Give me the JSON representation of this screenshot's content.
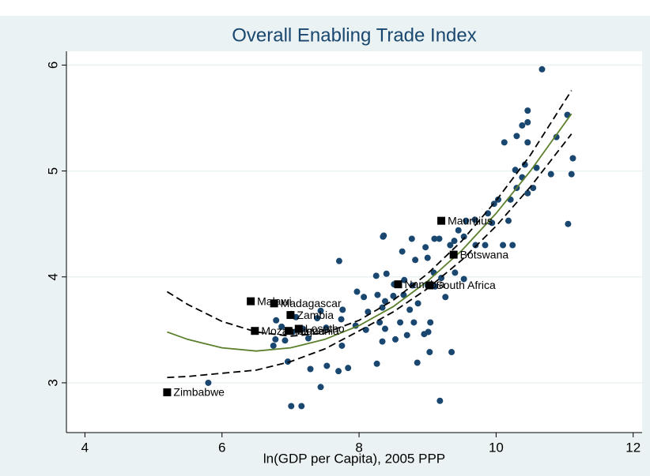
{
  "chart_data": {
    "type": "scatter",
    "title": "Overall Enabling Trade Index",
    "x_label": "ln(GDP per Capita), 2005 PPP",
    "xlim": [
      3.73,
      12.13
    ],
    "xticks": [
      4,
      6,
      8,
      10,
      12
    ],
    "ylim": [
      2.53,
      6.13
    ],
    "yticks": [
      3,
      4,
      5,
      6
    ],
    "grid": true,
    "points": {
      "color": "#1a476f",
      "x": [
        10.67,
        10.46,
        11.04,
        10.46,
        10.3,
        10.38,
        10.46,
        10.12,
        10.88,
        11.12,
        10.42,
        10.28,
        10.59,
        10.8,
        11.1,
        10.38,
        10.3,
        10.54,
        10.46,
        10.21,
        10.03,
        9.97,
        9.88,
        9.69,
        9.94,
        10.18,
        11.05,
        9.56,
        9.45,
        9.39,
        9.53,
        9.17,
        9.33,
        9.7,
        9.84,
        10.1,
        10.24,
        9.1,
        8.97,
        8.77,
        8.36,
        8.63,
        8.82,
        9.0,
        9.09,
        9.0,
        9.2,
        9.4,
        9.53,
        9.26,
        9.11,
        8.78,
        8.66,
        8.51,
        8.4,
        8.25,
        7.97,
        8.27,
        8.5,
        8.65,
        8.86,
        8.74,
        8.38,
        8.13,
        8.07,
        8.34,
        7.76,
        8.3,
        8.6,
        8.38,
        8.8,
        9.04,
        9.01,
        8.34,
        8.7,
        8.95,
        8.85,
        9.03,
        7.95,
        7.74,
        7.39,
        7.44,
        7.52,
        7.18,
        6.87,
        7.03,
        7.08,
        6.79,
        6.75,
        6.92,
        6.96,
        7.26,
        7.01,
        7.29,
        7.53,
        7.75,
        7.84,
        8.1,
        8.26,
        8.53,
        7.01,
        7.16,
        7.44,
        5.8,
        7.71,
        8.35,
        9.18,
        9.35,
        6.78,
        7.7
      ],
      "y": [
        5.96,
        5.57,
        5.53,
        5.46,
        5.33,
        5.43,
        5.27,
        5.27,
        5.32,
        5.12,
        5.06,
        5.01,
        5.03,
        4.97,
        4.97,
        4.94,
        4.84,
        4.84,
        4.79,
        4.73,
        4.73,
        4.69,
        4.6,
        4.54,
        4.51,
        4.53,
        4.5,
        4.53,
        4.44,
        4.34,
        4.38,
        4.36,
        4.3,
        4.3,
        4.3,
        4.3,
        4.3,
        4.36,
        4.28,
        4.36,
        4.39,
        4.24,
        4.16,
        4.18,
        4.04,
        3.92,
        3.99,
        4.04,
        3.98,
        3.81,
        3.91,
        3.92,
        3.97,
        3.93,
        4.03,
        4.01,
        3.86,
        3.83,
        3.82,
        3.83,
        3.75,
        3.69,
        3.77,
        3.67,
        3.81,
        3.71,
        3.69,
        3.57,
        3.57,
        3.51,
        3.57,
        3.57,
        3.48,
        3.39,
        3.45,
        3.46,
        3.19,
        3.29,
        3.54,
        3.6,
        3.61,
        3.68,
        3.52,
        3.51,
        3.53,
        3.48,
        3.62,
        3.59,
        3.35,
        3.4,
        3.2,
        3.42,
        3.65,
        3.13,
        3.16,
        3.35,
        3.14,
        3.5,
        3.18,
        3.41,
        2.78,
        2.78,
        2.96,
        3.0,
        4.15,
        4.38,
        2.83,
        3.29,
        3.41,
        3.11
      ]
    },
    "labeled": {
      "color": "#000000",
      "labels": [
        "Zimbabwe",
        "Malawi",
        "Madagascar",
        "Mozambique",
        "Zambia",
        "Tanzania",
        "Lesotho",
        "Namibia",
        "South Africa",
        "Mauritius",
        "Botswana"
      ],
      "x": [
        5.2,
        6.42,
        6.76,
        6.48,
        7.0,
        6.97,
        7.12,
        8.57,
        9.03,
        9.2,
        9.38
      ],
      "y": [
        2.91,
        3.77,
        3.75,
        3.49,
        3.64,
        3.49,
        3.51,
        3.93,
        3.92,
        4.53,
        4.21
      ]
    },
    "fit": {
      "color": "#5b7f2b",
      "x": [
        5.2,
        5.5,
        6,
        6.5,
        7,
        7.5,
        8,
        8.5,
        9,
        9.5,
        10,
        10.5,
        11.1
      ],
      "y": [
        3.48,
        3.41,
        3.33,
        3.3,
        3.33,
        3.41,
        3.54,
        3.72,
        3.96,
        4.25,
        4.6,
        5.0,
        5.54
      ]
    },
    "ci_upper": {
      "color": "#000000",
      "x": [
        5.2,
        5.5,
        6,
        6.5,
        7,
        7.5,
        8,
        8.5,
        9,
        9.5,
        10,
        10.5,
        11.1
      ],
      "y": [
        3.86,
        3.74,
        3.58,
        3.48,
        3.44,
        3.47,
        3.59,
        3.78,
        4.03,
        4.34,
        4.72,
        5.15,
        5.76
      ]
    },
    "ci_lower": {
      "color": "#000000",
      "x": [
        5.2,
        5.5,
        6,
        6.5,
        7,
        7.5,
        8,
        8.5,
        9,
        9.5,
        10,
        10.5,
        11.1
      ],
      "y": [
        3.05,
        3.06,
        3.09,
        3.12,
        3.2,
        3.32,
        3.49,
        3.67,
        3.89,
        4.16,
        4.48,
        4.85,
        5.35
      ]
    }
  }
}
